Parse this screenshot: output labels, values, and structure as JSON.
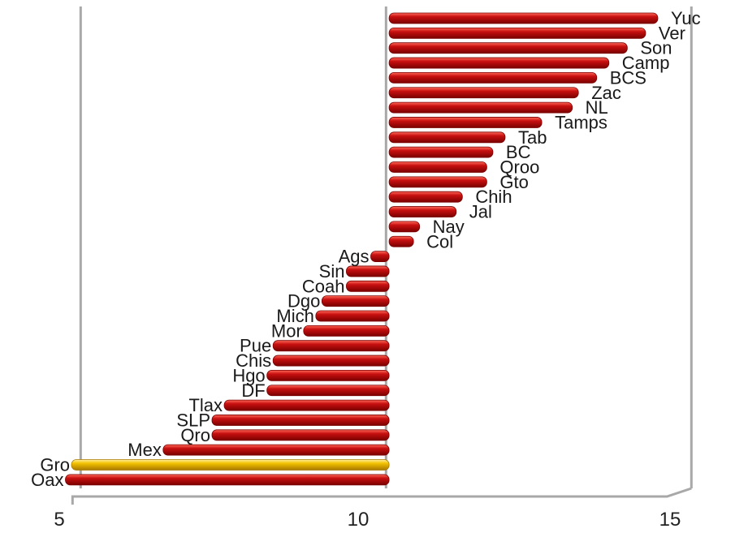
{
  "chart_data": {
    "type": "bar",
    "orientation": "horizontal",
    "baseline": 10.4,
    "categories": [
      "Yuc",
      "Ver",
      "Son",
      "Camp",
      "BCS",
      "Zac",
      "NL",
      "Tamps",
      "Tab",
      "BC",
      "Qroo",
      "Gto",
      "Chih",
      "Jal",
      "Nay",
      "Col",
      "Ags",
      "Sin",
      "Coah",
      "Dgo",
      "Mich",
      "Mor",
      "Pue",
      "Chis",
      "Hgo",
      "DF",
      "Tlax",
      "SLP",
      "Qro",
      "Mex",
      "Gro",
      "Oax"
    ],
    "values": [
      14.8,
      14.6,
      14.3,
      14.0,
      13.8,
      13.5,
      13.4,
      12.9,
      12.3,
      12.1,
      12.0,
      12.0,
      11.6,
      11.5,
      10.9,
      10.8,
      10.1,
      9.7,
      9.7,
      9.3,
      9.2,
      9.0,
      8.5,
      8.5,
      8.4,
      8.4,
      7.7,
      7.5,
      7.5,
      6.7,
      5.2,
      5.1
    ],
    "highlight_category": "Gro",
    "colors": {
      "bar": "#c81010",
      "bar_dark": "#7a0000",
      "bar_light": "#ff6a5a",
      "highlight": "#f2c200",
      "highlight_dark": "#a87800",
      "highlight_light": "#fff0a0",
      "grid": "#a8a8a8"
    },
    "x_ticks": [
      "5",
      "10",
      "15"
    ],
    "xlim": [
      5,
      15
    ],
    "grid": true,
    "title": "",
    "xlabel": "",
    "ylabel": ""
  }
}
